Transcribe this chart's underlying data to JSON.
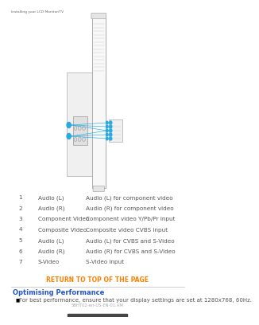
{
  "page_header": "Installing your LCD Monitor/TV",
  "table_rows": [
    {
      "num": "1",
      "label": "Audio (L)",
      "desc": "Audio (L) for component video"
    },
    {
      "num": "2",
      "label": "Audio (R)",
      "desc": "Audio (R) for component video"
    },
    {
      "num": "3",
      "label": "Component Video",
      "desc": "Component video Y/Pb/Pr input"
    },
    {
      "num": "4",
      "label": "Composite Video",
      "desc": "Composite video CVBS input"
    },
    {
      "num": "5",
      "label": "Audio (L)",
      "desc": "Audio (L) for CVBS and S-Video"
    },
    {
      "num": "6",
      "label": "Audio (R)",
      "desc": "Audio (R) for CVBS and S-Video"
    },
    {
      "num": "7",
      "label": "S-Video",
      "desc": "S-Video input"
    }
  ],
  "return_link": "RETURN TO TOP OF THE PAGE",
  "section_title": "Optimising Performance",
  "bullet_text": "For best performance, ensure that your display settings are set at 1280x768, 60Hz.",
  "footer_text": "5BHT02-en-US-EN-01.AM",
  "bg_color": "#ffffff",
  "text_color": "#000000",
  "header_text_color": "#666666",
  "link_color": "#ff8000",
  "section_title_color": "#2255cc",
  "table_text_color": "#555555",
  "connector_color": "#29aae1",
  "divider_color": "#bbbbbb",
  "monitor_edge": "#aaaaaa",
  "monitor_fill": "#f8f8f8",
  "bracket_fill": "#f0f0f0",
  "port_fill": "#dddddd",
  "port_edge": "#888888"
}
